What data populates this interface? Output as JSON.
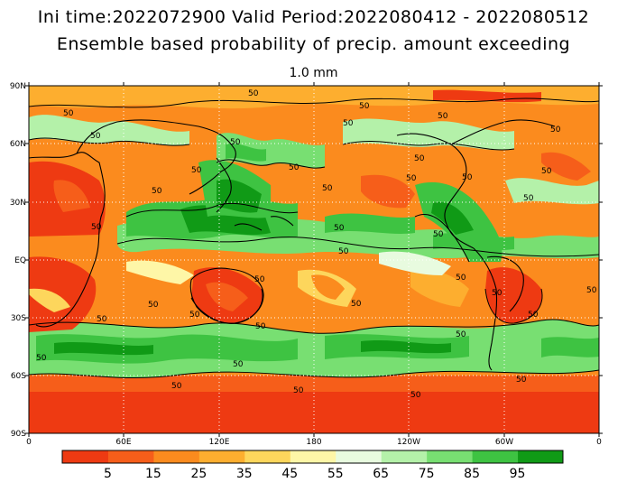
{
  "header": {
    "line1": "Ini time:2022072900   Valid Period:2022080412 - 2022080512",
    "line2": "Ensemble based probability of precip. amount exceeding",
    "threshold": "1.0 mm"
  },
  "axes": {
    "lat_labels": [
      "90N",
      "60N",
      "30N",
      "EQ",
      "30S",
      "60S",
      "90S"
    ],
    "lon_labels": [
      "0",
      "60E",
      "120E",
      "180",
      "120W",
      "60W",
      "0"
    ]
  },
  "contour_label": "50",
  "colorbar": {
    "colors": [
      "#ee3a12",
      "#f65e1a",
      "#fb8b1e",
      "#fdae2f",
      "#fdd65c",
      "#fef6a7",
      "#e8fbdf",
      "#b4f1a9",
      "#78df72",
      "#3ec342",
      "#109a16"
    ],
    "tick_labels": [
      "5",
      "15",
      "25",
      "35",
      "45",
      "55",
      "65",
      "75",
      "85",
      "95"
    ]
  },
  "palette": {
    "red": "#ee3a12",
    "green": "#109a16",
    "grid": "#ffffff"
  }
}
